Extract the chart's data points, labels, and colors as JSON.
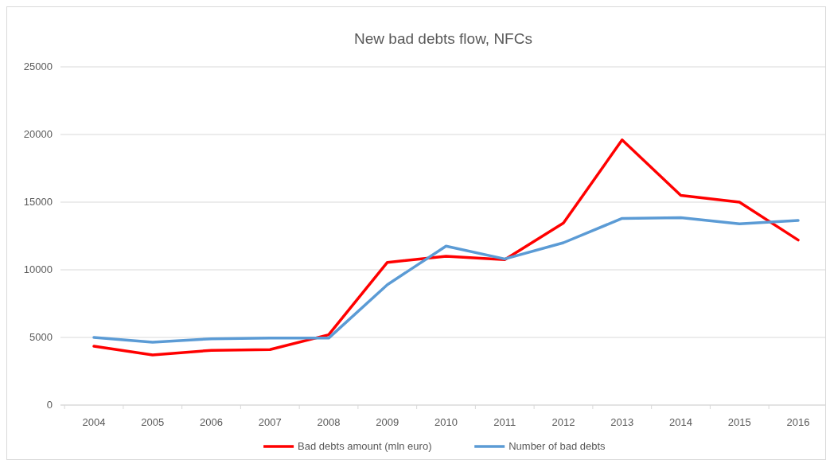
{
  "chart_data": {
    "type": "line",
    "title": "New bad debts flow, NFCs",
    "categories": [
      "2004",
      "2005",
      "2006",
      "2007",
      "2008",
      "2009",
      "2010",
      "2011",
      "2012",
      "2013",
      "2014",
      "2015",
      "2016"
    ],
    "series": [
      {
        "name": "Bad debts amount (mln euro)",
        "color": "#ff0000",
        "values": [
          4350,
          3700,
          4050,
          4100,
          5200,
          10550,
          11000,
          10750,
          13450,
          19600,
          15500,
          15000,
          12200
        ]
      },
      {
        "name": "Number of bad debts",
        "color": "#5b9bd5",
        "values": [
          5000,
          4650,
          4900,
          4950,
          4950,
          8900,
          11750,
          10800,
          12000,
          13800,
          13850,
          13400,
          13650
        ]
      }
    ],
    "ylim": [
      0,
      25000
    ],
    "yticks": [
      0,
      5000,
      10000,
      15000,
      20000,
      25000
    ],
    "grid": "y",
    "legend": "bottom",
    "marker": "none",
    "line_style": "solid"
  }
}
